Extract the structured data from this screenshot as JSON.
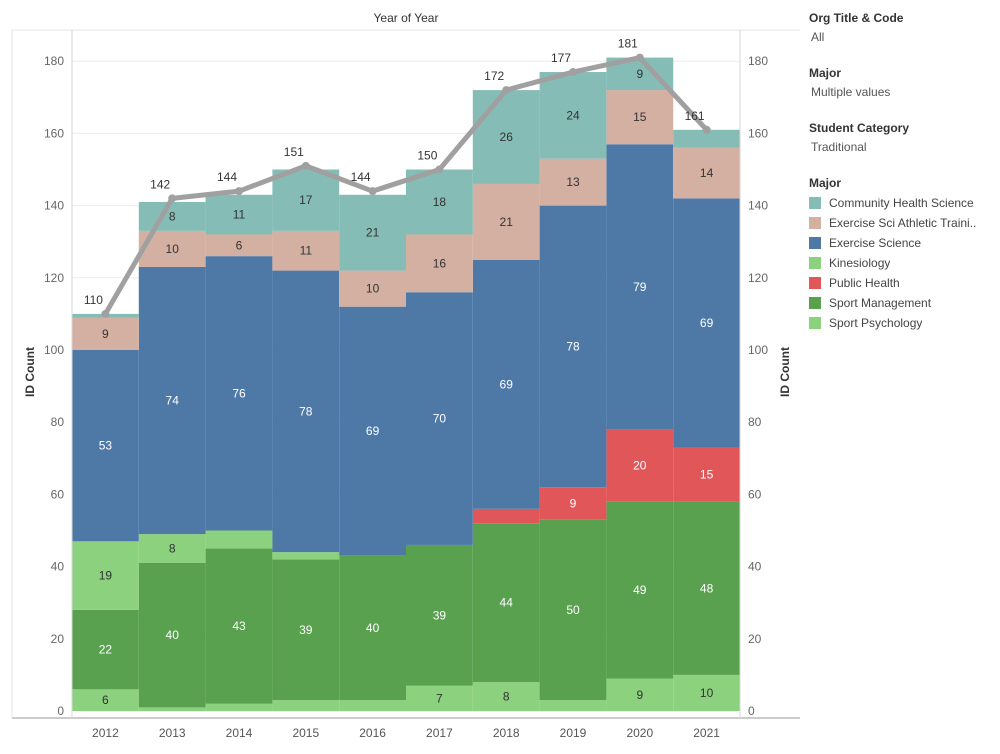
{
  "filters": [
    {
      "title": "Org Title & Code",
      "value": "All"
    },
    {
      "title": "Major",
      "value": "Multiple values"
    },
    {
      "title": "Student Category",
      "value": "Traditional"
    }
  ],
  "legend": {
    "title": "Major",
    "items": [
      {
        "label": "Community Health Science",
        "display": "Community Health Science",
        "color": "#86BCB6"
      },
      {
        "label": "Exercise Sci Athletic Training",
        "display": "Exercise Sci Athletic Traini..",
        "color": "#D4B0A2"
      },
      {
        "label": "Exercise Science",
        "display": "Exercise Science",
        "color": "#4E79A7"
      },
      {
        "label": "Kinesiology",
        "display": "Kinesiology",
        "color": "#8CD17D"
      },
      {
        "label": "Public Health",
        "display": "Public Health",
        "color": "#E15759"
      },
      {
        "label": "Sport Management",
        "display": "Sport Management",
        "color": "#59A14F"
      },
      {
        "label": "Sport Psychology",
        "display": "Sport Psychology",
        "color": "#8CD17D"
      }
    ]
  },
  "chart_data": {
    "type": "bar",
    "stacked": true,
    "title": "Year of Year",
    "xlabel": "",
    "ylabel": "ID Count",
    "ylabel_right": "ID Count",
    "ylim": [
      0,
      190
    ],
    "yticks": [
      0,
      20,
      40,
      60,
      80,
      100,
      120,
      140,
      160,
      180
    ],
    "categories": [
      "2012",
      "2013",
      "2014",
      "2015",
      "2016",
      "2017",
      "2018",
      "2019",
      "2020",
      "2021"
    ],
    "series": [
      {
        "name": "Kinesiology",
        "color": "#8CD17D",
        "values": [
          6,
          1,
          2,
          3,
          3,
          7,
          8,
          3,
          9,
          10
        ],
        "labels": [
          "6",
          "",
          "",
          "",
          "",
          "7",
          "8",
          "",
          "9",
          "10"
        ],
        "label_color": "#333333"
      },
      {
        "name": "Sport Management",
        "color": "#59A14F",
        "values": [
          22,
          40,
          43,
          39,
          40,
          39,
          44,
          50,
          49,
          48
        ],
        "labels": [
          "22",
          "40",
          "43",
          "39",
          "40",
          "39",
          "44",
          "50",
          "49",
          "48"
        ],
        "label_color": "#ffffff"
      },
      {
        "name": "Sport Psychology",
        "color": "#8CD17D",
        "values": [
          19,
          8,
          5,
          2,
          0,
          0,
          0,
          0,
          0,
          0
        ],
        "labels": [
          "19",
          "8",
          "",
          "",
          "",
          "",
          "",
          "",
          "",
          ""
        ],
        "label_color": "#333333"
      },
      {
        "name": "Public Health",
        "color": "#E15759",
        "values": [
          0,
          0,
          0,
          0,
          0,
          0,
          4,
          9,
          20,
          15
        ],
        "labels": [
          "",
          "",
          "",
          "",
          "",
          "",
          "",
          "9",
          "20",
          "15"
        ],
        "label_color": "#ffffff"
      },
      {
        "name": "Exercise Science",
        "color": "#4E79A7",
        "values": [
          53,
          74,
          76,
          78,
          69,
          70,
          69,
          78,
          79,
          69
        ],
        "labels": [
          "53",
          "74",
          "76",
          "78",
          "69",
          "70",
          "69",
          "78",
          "79",
          "69"
        ],
        "label_color": "#ffffff"
      },
      {
        "name": "Exercise Sci Athletic Training",
        "color": "#D4B0A2",
        "values": [
          9,
          10,
          6,
          11,
          10,
          16,
          21,
          13,
          15,
          14
        ],
        "labels": [
          "9",
          "10",
          "6",
          "11",
          "10",
          "16",
          "21",
          "13",
          "15",
          "14"
        ],
        "label_color": "#333333"
      },
      {
        "name": "Community Health Science",
        "color": "#86BCB6",
        "values": [
          1,
          8,
          11,
          17,
          21,
          18,
          26,
          24,
          9,
          5
        ],
        "labels": [
          "",
          "8",
          "11",
          "17",
          "21",
          "18",
          "26",
          "24",
          "9",
          ""
        ],
        "label_color": "#333333"
      }
    ],
    "totals": {
      "name": "Total",
      "color": "#A0A0A0",
      "values": [
        110,
        142,
        144,
        151,
        144,
        150,
        172,
        177,
        181,
        161
      ]
    },
    "grid": true,
    "legend_position": "right"
  }
}
